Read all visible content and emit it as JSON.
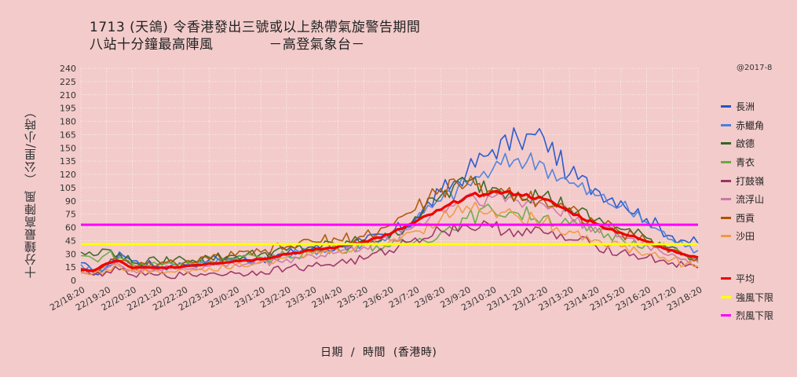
{
  "title": {
    "line1": "1713 (天鴿)  令香港發出三號或以上熱帶氣旋警告期間",
    "line2": "八站十分鐘最高陣風",
    "line2b": "－高登氣象台－"
  },
  "copyright": "@2017-8",
  "chart_data": {
    "type": "line",
    "xlabel": "日期  /  時間  (香港時)",
    "ylabel": "十分鐘最高陣風  （公里/小時）",
    "ylim": [
      0,
      240
    ],
    "yticks": [
      0,
      15,
      30,
      45,
      60,
      75,
      90,
      105,
      120,
      135,
      150,
      165,
      180,
      195,
      210,
      225,
      240
    ],
    "x_tick_labels": [
      "22/18:20",
      "22/19:20",
      "22/20:20",
      "22/21:20",
      "22/22:20",
      "22/23:20",
      "23/0:20",
      "23/1:20",
      "23/2:20",
      "23/3:20",
      "23/4:20",
      "23/5:20",
      "23/6:20",
      "23/7:20",
      "23/8:20",
      "23/9:20",
      "23/10:20",
      "23/11:20",
      "23/12:20",
      "23/13:20",
      "23/14:20",
      "23/15:20",
      "23/16:20",
      "23/17:20",
      "23/18:20"
    ],
    "x_note": "x values are hours elapsed after 22/18:20 (10-minute steps)",
    "grid": true,
    "legend_position": "right",
    "reference_lines": [
      {
        "name": "強風下限",
        "value": 41,
        "color": "#ffff00"
      },
      {
        "name": "烈風下限",
        "value": 63,
        "color": "#ff00ff"
      }
    ],
    "series": [
      {
        "name": "長洲",
        "color": "#2255cc",
        "points": [
          [
            0,
            20
          ],
          [
            0.5,
            8
          ],
          [
            1,
            14
          ],
          [
            1.5,
            32
          ],
          [
            2,
            22
          ],
          [
            3,
            16
          ],
          [
            4,
            18
          ],
          [
            5,
            24
          ],
          [
            6,
            26
          ],
          [
            7,
            24
          ],
          [
            8,
            30
          ],
          [
            9,
            36
          ],
          [
            10,
            38
          ],
          [
            11,
            44
          ],
          [
            12,
            52
          ],
          [
            13,
            70
          ],
          [
            14,
            100
          ],
          [
            15,
            122
          ],
          [
            16,
            148
          ],
          [
            17,
            160
          ],
          [
            18,
            162
          ],
          [
            19,
            120
          ],
          [
            20,
            104
          ],
          [
            21,
            90
          ],
          [
            22,
            70
          ],
          [
            23,
            50
          ],
          [
            23.5,
            45
          ],
          [
            24,
            42
          ]
        ]
      },
      {
        "name": "赤鱲角",
        "color": "#4a7fdb",
        "points": [
          [
            0,
            18
          ],
          [
            0.5,
            10
          ],
          [
            1,
            16
          ],
          [
            1.5,
            28
          ],
          [
            2,
            20
          ],
          [
            3,
            14
          ],
          [
            4,
            16
          ],
          [
            5,
            22
          ],
          [
            6,
            24
          ],
          [
            7,
            22
          ],
          [
            8,
            28
          ],
          [
            9,
            34
          ],
          [
            10,
            38
          ],
          [
            11,
            42
          ],
          [
            12,
            50
          ],
          [
            13,
            68
          ],
          [
            14,
            90
          ],
          [
            15,
            110
          ],
          [
            16,
            125
          ],
          [
            17,
            138
          ],
          [
            18,
            132
          ],
          [
            19,
            110
          ],
          [
            20,
            96
          ],
          [
            21,
            84
          ],
          [
            22,
            66
          ],
          [
            23,
            46
          ],
          [
            23.5,
            38
          ],
          [
            24,
            34
          ]
        ]
      },
      {
        "name": "啟德",
        "color": "#336622",
        "points": [
          [
            0,
            32
          ],
          [
            0.5,
            28
          ],
          [
            1,
            35
          ],
          [
            1.5,
            30
          ],
          [
            2,
            20
          ],
          [
            3,
            22
          ],
          [
            4,
            24
          ],
          [
            5,
            26
          ],
          [
            6,
            28
          ],
          [
            7,
            30
          ],
          [
            8,
            34
          ],
          [
            9,
            38
          ],
          [
            10,
            40
          ],
          [
            11,
            46
          ],
          [
            12,
            48
          ],
          [
            13,
            72
          ],
          [
            14,
            96
          ],
          [
            15,
            112
          ],
          [
            16,
            105
          ],
          [
            17,
            100
          ],
          [
            18,
            96
          ],
          [
            19,
            82
          ],
          [
            20,
            68
          ],
          [
            21,
            58
          ],
          [
            22,
            48
          ],
          [
            23,
            38
          ],
          [
            23.5,
            30
          ],
          [
            24,
            24
          ]
        ]
      },
      {
        "name": "青衣",
        "color": "#66aa44",
        "points": [
          [
            0,
            28
          ],
          [
            0.5,
            24
          ],
          [
            1,
            30
          ],
          [
            1.5,
            26
          ],
          [
            2,
            18
          ],
          [
            3,
            18
          ],
          [
            4,
            20
          ],
          [
            5,
            22
          ],
          [
            6,
            24
          ],
          [
            7,
            26
          ],
          [
            8,
            28
          ],
          [
            9,
            32
          ],
          [
            10,
            36
          ],
          [
            11,
            40
          ],
          [
            12,
            38
          ],
          [
            13,
            44
          ],
          [
            14,
            54
          ],
          [
            15,
            70
          ],
          [
            16,
            80
          ],
          [
            17,
            76
          ],
          [
            18,
            72
          ],
          [
            19,
            64
          ],
          [
            20,
            54
          ],
          [
            21,
            48
          ],
          [
            22,
            42
          ],
          [
            23,
            34
          ],
          [
            23.5,
            28
          ],
          [
            24,
            22
          ]
        ]
      },
      {
        "name": "打鼓嶺",
        "color": "#993366",
        "points": [
          [
            0,
            10
          ],
          [
            0.5,
            6
          ],
          [
            1,
            10
          ],
          [
            1.5,
            12
          ],
          [
            2,
            6
          ],
          [
            3,
            6
          ],
          [
            4,
            6
          ],
          [
            5,
            8
          ],
          [
            6,
            8
          ],
          [
            7,
            10
          ],
          [
            8,
            14
          ],
          [
            9,
            16
          ],
          [
            10,
            20
          ],
          [
            11,
            24
          ],
          [
            12,
            34
          ],
          [
            13,
            48
          ],
          [
            14,
            56
          ],
          [
            15,
            62
          ],
          [
            16,
            60
          ],
          [
            17,
            56
          ],
          [
            18,
            54
          ],
          [
            19,
            46
          ],
          [
            20,
            40
          ],
          [
            21,
            32
          ],
          [
            22,
            26
          ],
          [
            23,
            20
          ],
          [
            23.5,
            16
          ],
          [
            24,
            14
          ]
        ]
      },
      {
        "name": "流浮山",
        "color": "#cc77aa",
        "points": [
          [
            0,
            12
          ],
          [
            0.5,
            10
          ],
          [
            1,
            14
          ],
          [
            1.5,
            18
          ],
          [
            2,
            12
          ],
          [
            3,
            12
          ],
          [
            4,
            14
          ],
          [
            5,
            16
          ],
          [
            6,
            18
          ],
          [
            7,
            20
          ],
          [
            8,
            24
          ],
          [
            9,
            28
          ],
          [
            10,
            32
          ],
          [
            11,
            38
          ],
          [
            12,
            46
          ],
          [
            13,
            62
          ],
          [
            14,
            80
          ],
          [
            15,
            96
          ],
          [
            16,
            94
          ],
          [
            17,
            90
          ],
          [
            18,
            86
          ],
          [
            19,
            74
          ],
          [
            20,
            60
          ],
          [
            21,
            50
          ],
          [
            22,
            40
          ],
          [
            23,
            30
          ],
          [
            23.5,
            24
          ],
          [
            24,
            20
          ]
        ]
      },
      {
        "name": "西貢",
        "color": "#aa5500",
        "points": [
          [
            0,
            14
          ],
          [
            0.5,
            12
          ],
          [
            1,
            18
          ],
          [
            1.5,
            22
          ],
          [
            2,
            16
          ],
          [
            3,
            18
          ],
          [
            4,
            20
          ],
          [
            5,
            24
          ],
          [
            6,
            28
          ],
          [
            7,
            32
          ],
          [
            8,
            38
          ],
          [
            9,
            44
          ],
          [
            10,
            46
          ],
          [
            11,
            50
          ],
          [
            12,
            62
          ],
          [
            13,
            80
          ],
          [
            14,
            104
          ],
          [
            15,
            108
          ],
          [
            16,
            102
          ],
          [
            17,
            98
          ],
          [
            18,
            92
          ],
          [
            19,
            80
          ],
          [
            20,
            66
          ],
          [
            21,
            54
          ],
          [
            22,
            44
          ],
          [
            23,
            34
          ],
          [
            23.5,
            28
          ],
          [
            24,
            24
          ]
        ]
      },
      {
        "name": "沙田",
        "color": "#ee9944",
        "points": [
          [
            0,
            8
          ],
          [
            0.5,
            8
          ],
          [
            1,
            12
          ],
          [
            1.5,
            16
          ],
          [
            2,
            10
          ],
          [
            3,
            10
          ],
          [
            4,
            12
          ],
          [
            5,
            14
          ],
          [
            6,
            18
          ],
          [
            7,
            22
          ],
          [
            8,
            26
          ],
          [
            9,
            30
          ],
          [
            10,
            34
          ],
          [
            11,
            40
          ],
          [
            12,
            44
          ],
          [
            13,
            56
          ],
          [
            14,
            70
          ],
          [
            15,
            84
          ],
          [
            16,
            80
          ],
          [
            17,
            72
          ],
          [
            18,
            66
          ],
          [
            19,
            56
          ],
          [
            20,
            46
          ],
          [
            21,
            38
          ],
          [
            22,
            30
          ],
          [
            23,
            24
          ],
          [
            23.5,
            18
          ],
          [
            24,
            16
          ]
        ]
      },
      {
        "name": "平均",
        "color": "#ee0000",
        "points": [
          [
            0,
            12
          ],
          [
            0.5,
            11
          ],
          [
            1,
            19
          ],
          [
            1.5,
            22
          ],
          [
            2,
            14
          ],
          [
            3,
            14
          ],
          [
            4,
            16
          ],
          [
            5,
            19
          ],
          [
            6,
            22
          ],
          [
            7,
            24
          ],
          [
            8,
            30
          ],
          [
            9,
            34
          ],
          [
            10,
            38
          ],
          [
            11,
            44
          ],
          [
            12,
            52
          ],
          [
            13,
            66
          ],
          [
            14,
            80
          ],
          [
            15,
            95
          ],
          [
            16,
            100
          ],
          [
            17,
            98
          ],
          [
            18,
            92
          ],
          [
            19,
            78
          ],
          [
            20,
            64
          ],
          [
            21,
            54
          ],
          [
            22,
            44
          ],
          [
            23,
            34
          ],
          [
            23.5,
            29
          ],
          [
            24,
            26
          ]
        ]
      }
    ]
  }
}
